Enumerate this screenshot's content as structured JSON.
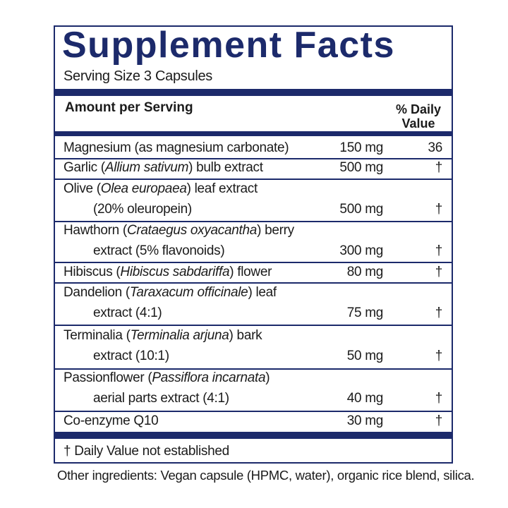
{
  "label": {
    "title": "Supplement Facts",
    "serving_size": "Serving Size 3 Capsules",
    "header": {
      "amount": "Amount per Serving",
      "daily_value": "% Daily Value"
    },
    "rows": [
      {
        "name": [
          [
            "Magnesium (as magnesium carbonate)"
          ]
        ],
        "amount": "150 mg",
        "dv": "36"
      },
      {
        "name": [
          [
            "Garlic (",
            "Allium sativum",
            ") bulb extract"
          ]
        ],
        "amount": "500 mg",
        "dv": "†"
      },
      {
        "name": [
          [
            "Olive (",
            "Olea europaea",
            ") leaf extract"
          ],
          [
            "(20% oleuropein)"
          ]
        ],
        "amount": "500 mg",
        "dv": "†"
      },
      {
        "name": [
          [
            "Hawthorn (",
            "Crataegus oxyacantha",
            ") berry"
          ],
          [
            "extract (5% flavonoids)"
          ]
        ],
        "amount": "300 mg",
        "dv": "†"
      },
      {
        "name": [
          [
            "Hibiscus (",
            "Hibiscus sabdariffa",
            ") flower"
          ]
        ],
        "amount": "80 mg",
        "dv": "†"
      },
      {
        "name": [
          [
            "Dandelion (",
            "Taraxacum officinale",
            ") leaf"
          ],
          [
            "extract (4:1)"
          ]
        ],
        "amount": "75 mg",
        "dv": "†"
      },
      {
        "name": [
          [
            "Terminalia (",
            "Terminalia arjuna",
            ") bark"
          ],
          [
            "extract (10:1)"
          ]
        ],
        "amount": "50 mg",
        "dv": "†"
      },
      {
        "name": [
          [
            "Passionflower (",
            "Passiflora incarnata",
            ")"
          ],
          [
            "aerial parts extract (4:1)"
          ]
        ],
        "amount": "40 mg",
        "dv": "†"
      },
      {
        "name": [
          [
            "Co-enzyme Q10"
          ]
        ],
        "amount": "30 mg",
        "dv": "†"
      }
    ],
    "footnote": "† Daily Value not established",
    "other_ingredients": "Other ingredients: Vegan capsule (HPMC, water), organic rice blend, silica."
  }
}
